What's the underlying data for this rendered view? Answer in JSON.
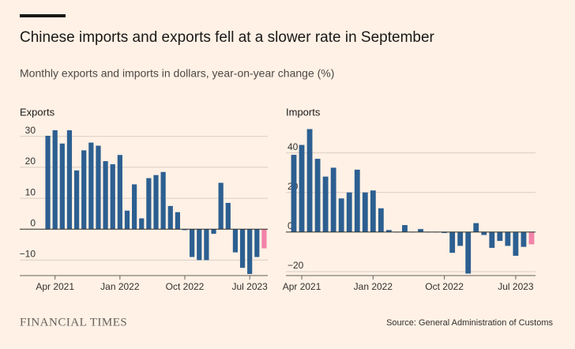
{
  "title": "Chinese imports and exports fell at a slower rate in September",
  "subtitle": "Monthly exports and imports in dollars, year-on-year change (%)",
  "brand": "FINANCIAL TIMES",
  "source": "Source: General Administration of Customs",
  "chart_data": [
    {
      "type": "bar",
      "title": "Exports",
      "categories": [
        null,
        "Apr 2021",
        null,
        null,
        null,
        null,
        null,
        null,
        null,
        null,
        "Jan 2022",
        null,
        null,
        null,
        null,
        null,
        null,
        null,
        null,
        "Oct 2022",
        null,
        null,
        null,
        null,
        null,
        null,
        null,
        null,
        "Jul 2023",
        null,
        null
      ],
      "values": [
        30.2,
        32,
        27.7,
        32,
        19,
        25.5,
        28,
        27,
        22,
        21,
        24,
        6,
        14.5,
        3.5,
        16.5,
        17.5,
        18.5,
        7.5,
        5.5,
        -0.3,
        -9,
        -10,
        -10,
        -1.5,
        15,
        8.5,
        -7.5,
        -12.5,
        -14.5,
        -9,
        -6.2
      ],
      "colors": [
        "#2c5f91",
        "#2c5f91",
        "#2c5f91",
        "#2c5f91",
        "#2c5f91",
        "#2c5f91",
        "#2c5f91",
        "#2c5f91",
        "#2c5f91",
        "#2c5f91",
        "#2c5f91",
        "#2c5f91",
        "#2c5f91",
        "#2c5f91",
        "#2c5f91",
        "#2c5f91",
        "#2c5f91",
        "#2c5f91",
        "#2c5f91",
        "#2c5f91",
        "#2c5f91",
        "#2c5f91",
        "#2c5f91",
        "#2c5f91",
        "#2c5f91",
        "#2c5f91",
        "#2c5f91",
        "#2c5f91",
        "#2c5f91",
        "#2c5f91",
        "#f283a8"
      ],
      "ylim": [
        -15,
        33
      ],
      "yticks": [
        {
          "value": -10,
          "label": "−10"
        },
        0,
        10,
        20,
        30
      ],
      "grid": true
    },
    {
      "type": "bar",
      "title": "Imports",
      "categories": [
        null,
        "Apr 2021",
        null,
        null,
        null,
        null,
        null,
        null,
        null,
        null,
        "Jan 2022",
        null,
        null,
        null,
        null,
        null,
        null,
        null,
        null,
        "Oct 2022",
        null,
        null,
        null,
        null,
        null,
        null,
        null,
        null,
        "Jul 2023",
        null,
        null
      ],
      "values": [
        39,
        44,
        52,
        37,
        28,
        32.5,
        17,
        20,
        31.5,
        20,
        21,
        12,
        1,
        0,
        3.5,
        0,
        1.5,
        0,
        0,
        -0.5,
        -10.5,
        -7,
        -21,
        4.5,
        -1.5,
        -8,
        -4.5,
        -7,
        -12,
        -7.5,
        -6.2
      ],
      "colors": [
        "#2c5f91",
        "#2c5f91",
        "#2c5f91",
        "#2c5f91",
        "#2c5f91",
        "#2c5f91",
        "#2c5f91",
        "#2c5f91",
        "#2c5f91",
        "#2c5f91",
        "#2c5f91",
        "#2c5f91",
        "#2c5f91",
        "#2c5f91",
        "#2c5f91",
        "#2c5f91",
        "#2c5f91",
        "#2c5f91",
        "#2c5f91",
        "#2c5f91",
        "#2c5f91",
        "#2c5f91",
        "#2c5f91",
        "#2c5f91",
        "#2c5f91",
        "#2c5f91",
        "#2c5f91",
        "#2c5f91",
        "#2c5f91",
        "#2c5f91",
        "#f283a8"
      ],
      "ylim": [
        -22,
        53
      ],
      "yticks": [
        {
          "value": -20,
          "label": "−20"
        },
        0,
        20,
        40
      ],
      "grid": true
    }
  ]
}
